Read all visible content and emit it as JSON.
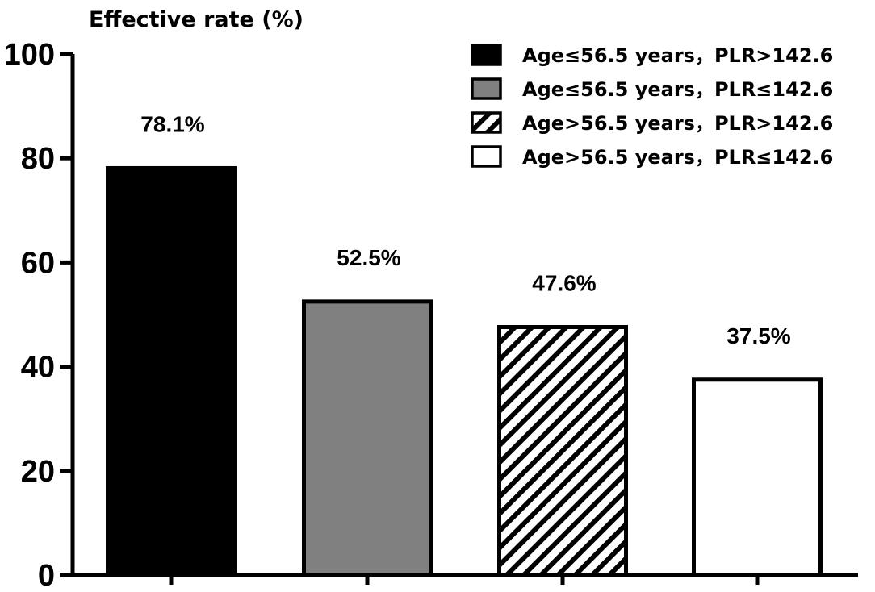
{
  "chart_data": {
    "type": "bar",
    "ylabel": "Effective rate (%)",
    "ylim": [
      0,
      100
    ],
    "yticks": [
      0,
      20,
      40,
      60,
      80,
      100
    ],
    "categories": [
      "Age≤56.5 years，PLR>142.6",
      "Age≤56.5 years，PLR≤142.6",
      "Age>56.5 years，PLR>142.6",
      "Age>56.5 years，PLR≤142.6"
    ],
    "values": [
      78.1,
      52.5,
      47.6,
      37.5
    ],
    "value_labels": [
      "78.1%",
      "52.5%",
      "47.6%",
      "37.5%"
    ],
    "fills": [
      "solid-black",
      "solid-gray",
      "diagonal-hatch",
      "white"
    ],
    "colors": {
      "black": "#000000",
      "gray": "#808080",
      "white": "#ffffff"
    },
    "legend": {
      "placement": "top-right",
      "entries": [
        "Age≤56.5 years，PLR>142.6",
        "Age≤56.5 years，PLR≤142.6",
        "Age>56.5 years，PLR>142.6",
        "Age>56.5 years，PLR≤142.6"
      ]
    },
    "grid": false
  }
}
